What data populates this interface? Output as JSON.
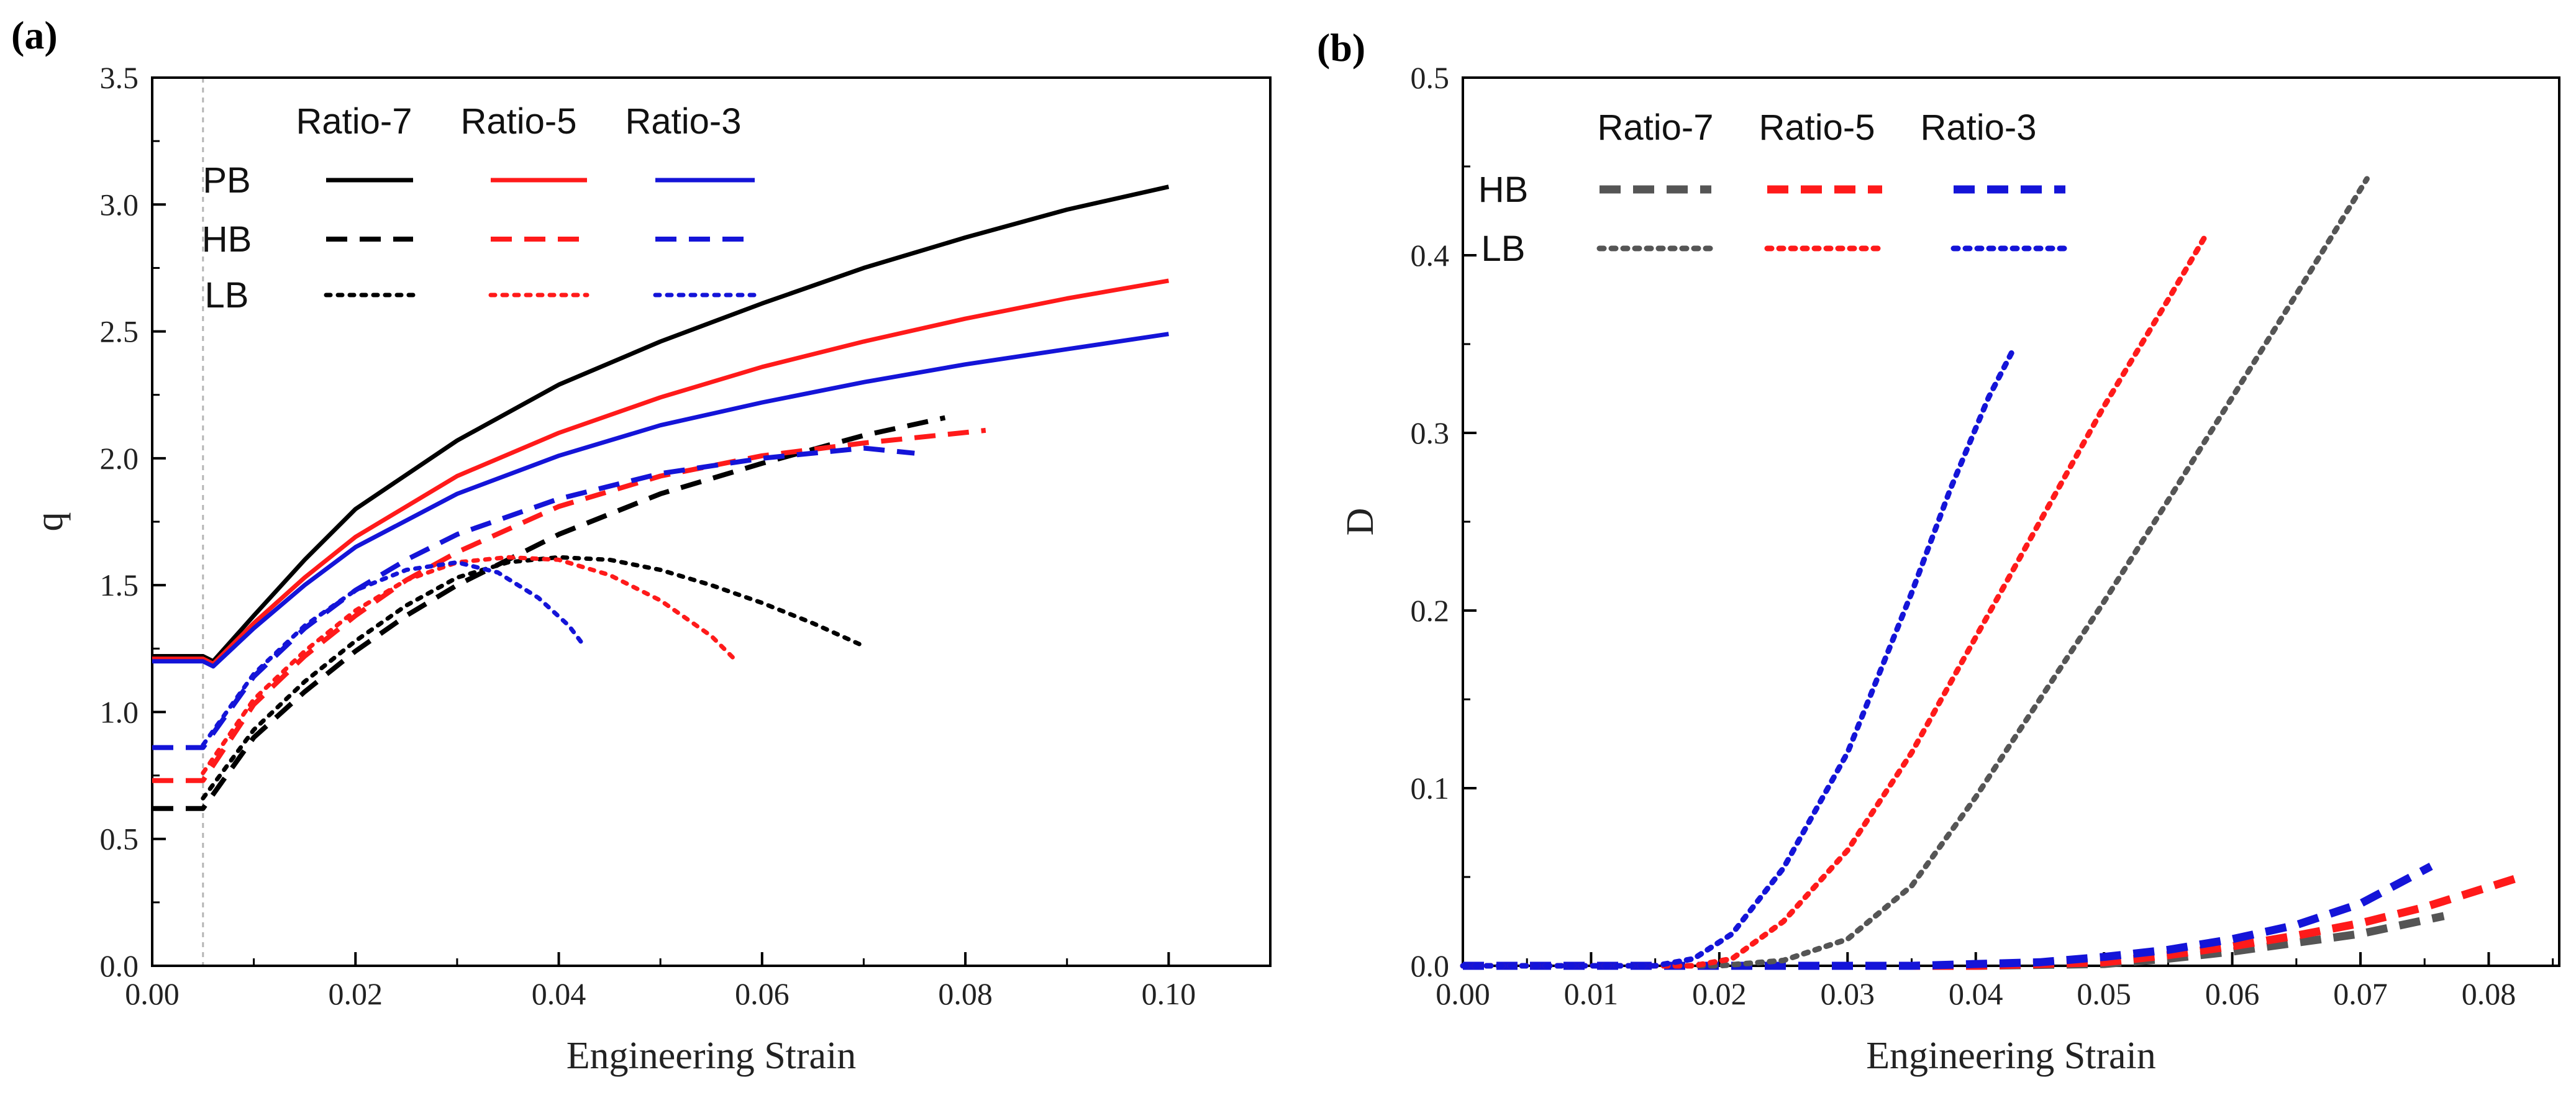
{
  "figure": {
    "panels": [
      {
        "tag": "(a)",
        "xlabel": "Engineering Strain",
        "ylabel": "q",
        "xticks": [
          "0.00",
          "0.02",
          "0.04",
          "0.06",
          "0.08",
          "0.10"
        ],
        "yticks": [
          "0.0",
          "0.5",
          "1.0",
          "1.5",
          "2.0",
          "2.5",
          "3.0",
          "3.5"
        ],
        "legend": {
          "columns": [
            "Ratio-7",
            "Ratio-5",
            "Ratio-3"
          ],
          "rows": [
            "PB",
            "HB",
            "LB"
          ]
        }
      },
      {
        "tag": "(b)",
        "xlabel": "Engineering Strain",
        "ylabel": "D",
        "xticks": [
          "0.00",
          "0.01",
          "0.02",
          "0.03",
          "0.04",
          "0.05",
          "0.06",
          "0.07",
          "0.08"
        ],
        "yticks": [
          "0.0",
          "0.1",
          "0.2",
          "0.3",
          "0.4",
          "0.5"
        ],
        "legend": {
          "columns": [
            "Ratio-7",
            "Ratio-5",
            "Ratio-3"
          ],
          "rows": [
            "HB",
            "LB"
          ]
        }
      }
    ]
  },
  "colors": {
    "ratio7_a": "#000000",
    "ratio7_b": "#555555",
    "ratio5": "#ff1a1a",
    "ratio3": "#1414d8"
  },
  "chart_data": [
    {
      "type": "line",
      "xlim": [
        0,
        0.11
      ],
      "ylim": [
        0,
        3.5
      ],
      "grid": false,
      "legend_position": "top-left",
      "reference_line_x": 0.005,
      "series": [
        {
          "group": "PB",
          "ratio": "Ratio-7",
          "style": "solid",
          "x": [
            0,
            0.005,
            0.006,
            0.01,
            0.015,
            0.02,
            0.03,
            0.04,
            0.05,
            0.06,
            0.07,
            0.08,
            0.09,
            0.1
          ],
          "y": [
            1.22,
            1.22,
            1.2,
            1.38,
            1.6,
            1.8,
            2.07,
            2.29,
            2.46,
            2.61,
            2.75,
            2.87,
            2.98,
            3.07
          ]
        },
        {
          "group": "PB",
          "ratio": "Ratio-5",
          "style": "solid",
          "x": [
            0,
            0.005,
            0.006,
            0.01,
            0.015,
            0.02,
            0.03,
            0.04,
            0.05,
            0.06,
            0.07,
            0.08,
            0.09,
            0.1
          ],
          "y": [
            1.21,
            1.21,
            1.19,
            1.35,
            1.53,
            1.69,
            1.93,
            2.1,
            2.24,
            2.36,
            2.46,
            2.55,
            2.63,
            2.7
          ]
        },
        {
          "group": "PB",
          "ratio": "Ratio-3",
          "style": "solid",
          "x": [
            0,
            0.005,
            0.006,
            0.01,
            0.015,
            0.02,
            0.03,
            0.04,
            0.05,
            0.06,
            0.07,
            0.08,
            0.09,
            0.1
          ],
          "y": [
            1.2,
            1.2,
            1.18,
            1.33,
            1.5,
            1.65,
            1.86,
            2.01,
            2.13,
            2.22,
            2.3,
            2.37,
            2.43,
            2.49
          ]
        },
        {
          "group": "HB",
          "ratio": "Ratio-7",
          "style": "dash",
          "x": [
            0,
            0.005,
            0.01,
            0.015,
            0.02,
            0.025,
            0.03,
            0.04,
            0.05,
            0.06,
            0.07,
            0.078
          ],
          "y": [
            0.62,
            0.62,
            0.9,
            1.08,
            1.24,
            1.38,
            1.5,
            1.7,
            1.86,
            1.98,
            2.09,
            2.16
          ]
        },
        {
          "group": "HB",
          "ratio": "Ratio-5",
          "style": "dash",
          "x": [
            0,
            0.005,
            0.01,
            0.015,
            0.02,
            0.025,
            0.03,
            0.04,
            0.05,
            0.06,
            0.07,
            0.082
          ],
          "y": [
            0.73,
            0.73,
            1.03,
            1.22,
            1.38,
            1.52,
            1.63,
            1.81,
            1.93,
            2.01,
            2.06,
            2.11
          ]
        },
        {
          "group": "HB",
          "ratio": "Ratio-3",
          "style": "dash",
          "x": [
            0,
            0.005,
            0.01,
            0.015,
            0.02,
            0.025,
            0.03,
            0.04,
            0.05,
            0.06,
            0.07,
            0.075
          ],
          "y": [
            0.86,
            0.86,
            1.14,
            1.33,
            1.48,
            1.6,
            1.7,
            1.84,
            1.94,
            2.0,
            2.04,
            2.02
          ]
        },
        {
          "group": "LB",
          "ratio": "Ratio-7",
          "style": "dot",
          "x": [
            0.005,
            0.01,
            0.015,
            0.02,
            0.025,
            0.03,
            0.035,
            0.04,
            0.045,
            0.05,
            0.055,
            0.06,
            0.065,
            0.07
          ],
          "y": [
            0.66,
            0.93,
            1.12,
            1.28,
            1.42,
            1.53,
            1.59,
            1.61,
            1.6,
            1.56,
            1.5,
            1.43,
            1.35,
            1.26
          ]
        },
        {
          "group": "LB",
          "ratio": "Ratio-5",
          "style": "dot",
          "x": [
            0.005,
            0.01,
            0.015,
            0.02,
            0.025,
            0.03,
            0.035,
            0.04,
            0.045,
            0.05,
            0.055,
            0.0575
          ],
          "y": [
            0.76,
            1.05,
            1.24,
            1.4,
            1.52,
            1.59,
            1.61,
            1.6,
            1.54,
            1.44,
            1.3,
            1.2
          ]
        },
        {
          "group": "LB",
          "ratio": "Ratio-3",
          "style": "dot",
          "x": [
            0.005,
            0.01,
            0.015,
            0.02,
            0.025,
            0.03,
            0.034,
            0.038,
            0.041,
            0.0425
          ],
          "y": [
            0.87,
            1.15,
            1.34,
            1.48,
            1.56,
            1.59,
            1.55,
            1.45,
            1.34,
            1.26
          ]
        }
      ]
    },
    {
      "type": "line",
      "xlim": [
        0,
        0.0855
      ],
      "ylim": [
        0,
        0.5
      ],
      "grid": false,
      "legend_position": "top-left",
      "series": [
        {
          "group": "HB",
          "ratio": "Ratio-7",
          "style": "dash",
          "x": [
            0,
            0.04,
            0.05,
            0.055,
            0.06,
            0.065,
            0.07,
            0.0765
          ],
          "y": [
            0,
            0,
            0.001,
            0.004,
            0.008,
            0.013,
            0.018,
            0.028
          ]
        },
        {
          "group": "HB",
          "ratio": "Ratio-5",
          "style": "dash",
          "x": [
            0,
            0.04,
            0.05,
            0.055,
            0.06,
            0.065,
            0.07,
            0.075,
            0.0825
          ],
          "y": [
            0,
            0,
            0.002,
            0.006,
            0.011,
            0.017,
            0.024,
            0.033,
            0.05
          ]
        },
        {
          "group": "HB",
          "ratio": "Ratio-3",
          "style": "dash",
          "x": [
            0,
            0.035,
            0.045,
            0.05,
            0.055,
            0.06,
            0.065,
            0.07,
            0.0755
          ],
          "y": [
            0,
            0,
            0.002,
            0.005,
            0.009,
            0.015,
            0.023,
            0.035,
            0.056
          ]
        },
        {
          "group": "LB",
          "ratio": "Ratio-7",
          "style": "dot",
          "x": [
            0,
            0.02,
            0.025,
            0.03,
            0.035,
            0.04,
            0.045,
            0.05,
            0.055,
            0.06,
            0.065,
            0.0705
          ],
          "y": [
            0,
            0,
            0.003,
            0.015,
            0.045,
            0.095,
            0.15,
            0.205,
            0.262,
            0.32,
            0.378,
            0.443
          ]
        },
        {
          "group": "LB",
          "ratio": "Ratio-5",
          "style": "dot",
          "x": [
            0,
            0.018,
            0.021,
            0.025,
            0.03,
            0.035,
            0.04,
            0.045,
            0.05,
            0.055,
            0.058
          ],
          "y": [
            0,
            0,
            0.004,
            0.025,
            0.065,
            0.12,
            0.185,
            0.25,
            0.315,
            0.375,
            0.412
          ]
        },
        {
          "group": "LB",
          "ratio": "Ratio-3",
          "style": "dot",
          "x": [
            0,
            0.015,
            0.018,
            0.021,
            0.025,
            0.03,
            0.035,
            0.038,
            0.041,
            0.043
          ],
          "y": [
            0,
            0,
            0.004,
            0.018,
            0.055,
            0.12,
            0.21,
            0.268,
            0.32,
            0.348
          ]
        }
      ]
    }
  ]
}
